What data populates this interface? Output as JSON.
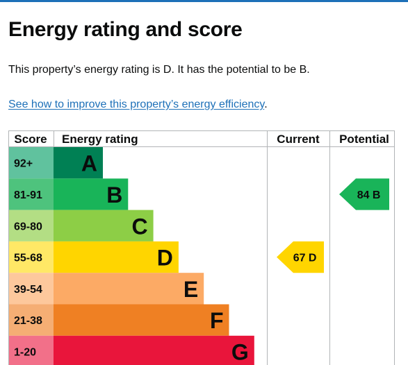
{
  "page": {
    "title": "Energy rating and score",
    "summary": "This property’s energy rating is D. It has the potential to be B.",
    "improve_link": "See how to improve this property’s energy efficiency",
    "improve_suffix": "."
  },
  "table": {
    "headers": {
      "score": "Score",
      "rating": "Energy rating",
      "current": "Current",
      "potential": "Potential"
    },
    "bands": [
      {
        "letter": "A",
        "range": "92+",
        "color": "#008054",
        "score_bg": "#60c29e"
      },
      {
        "letter": "B",
        "range": "81-91",
        "color": "#19b459",
        "score_bg": "#4ec37d"
      },
      {
        "letter": "C",
        "range": "69-80",
        "color": "#8dce46",
        "score_bg": "#b3de84"
      },
      {
        "letter": "D",
        "range": "55-68",
        "color": "#ffd500",
        "score_bg": "#ffe866"
      },
      {
        "letter": "E",
        "range": "39-54",
        "color": "#fcaa65",
        "score_bg": "#fdc89c"
      },
      {
        "letter": "F",
        "range": "21-38",
        "color": "#ef8023",
        "score_bg": "#f5ae74"
      },
      {
        "letter": "G",
        "range": "1-20",
        "color": "#e9153b",
        "score_bg": "#f27089"
      }
    ],
    "current": {
      "score": 67,
      "letter": "D",
      "label": "67 D",
      "color": "#ffd500"
    },
    "potential": {
      "score": 84,
      "letter": "B",
      "label": "84 B",
      "color": "#19b459"
    }
  },
  "colors": {
    "link": "#1d70b8",
    "text": "#0b0c0c",
    "border": "#b1b4b6",
    "brand_rule": "#1d70b8"
  }
}
